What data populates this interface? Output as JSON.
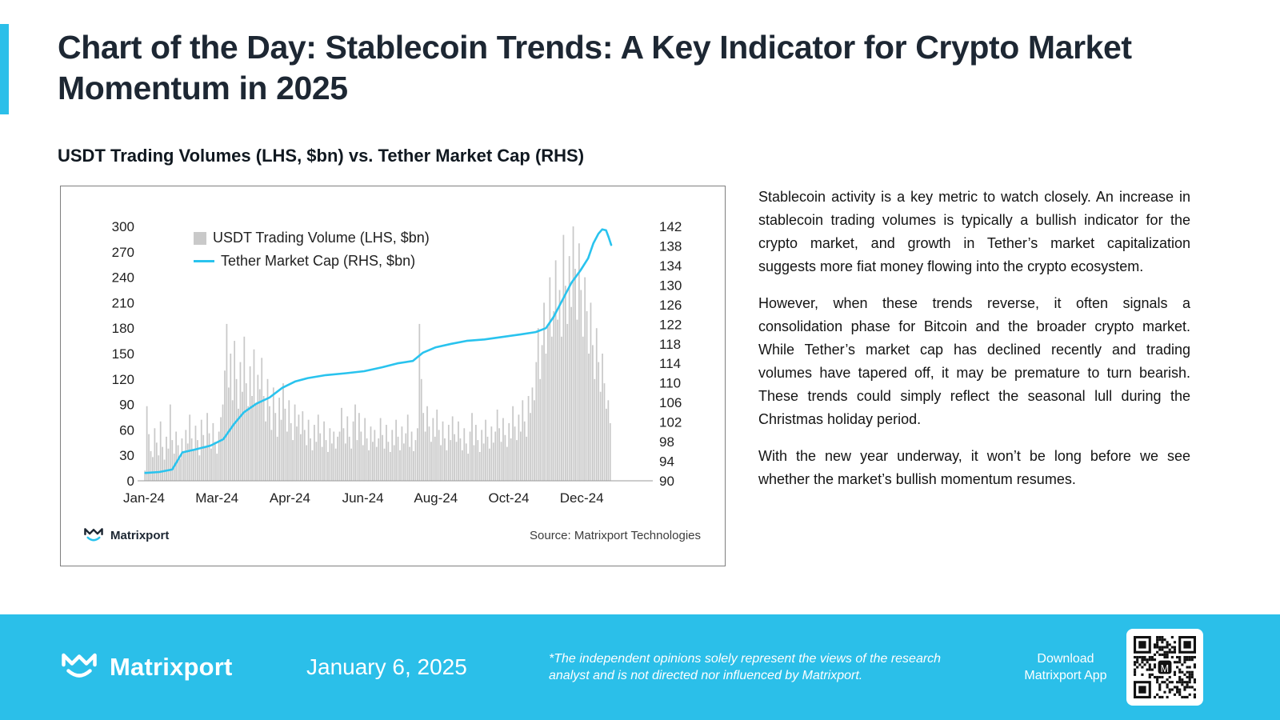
{
  "page": {
    "accent": "#2bbfe9",
    "background": "#ffffff"
  },
  "header": {
    "title": "Chart of the Day: Stablecoin Trends: A Key Indicator for Crypto Market Momentum in 2025"
  },
  "chart_section": {
    "heading": "USDT Trading Volumes (LHS, $bn) vs. Tether Market Cap (RHS)",
    "logo_text": "Matrixport",
    "source": "Source: Matrixport Technologies"
  },
  "chart_data": {
    "type": "bar+line combo",
    "legend_position": "top-left-inside",
    "grid": false,
    "x_axis": {
      "labels": [
        "Jan-24",
        "Mar-24",
        "Apr-24",
        "Jun-24",
        "Aug-24",
        "Oct-24",
        "Dec-24"
      ],
      "tick_days": [
        0,
        57,
        114,
        171,
        228,
        285,
        342
      ],
      "span_days": 365
    },
    "left_axis": {
      "min": 0,
      "max": 300,
      "step": 30
    },
    "right_axis": {
      "min": 90,
      "max": 142,
      "step": 4
    },
    "series": [
      {
        "name": "USDT Trading Volume (LHS, $bn)",
        "type": "bar",
        "axis": "left",
        "color": "#c9c9c9",
        "x_spacing": "uniform over span_days",
        "values": [
          12,
          88,
          55,
          35,
          28,
          62,
          45,
          30,
          70,
          40,
          25,
          52,
          38,
          90,
          48,
          32,
          58,
          42,
          26,
          50,
          34,
          60,
          44,
          78,
          50,
          36,
          65,
          48,
          30,
          72,
          54,
          40,
          80,
          56,
          38,
          68,
          46,
          32,
          58,
          75,
          90,
          130,
          185,
          110,
          150,
          95,
          165,
          120,
          85,
          140,
          105,
          170,
          115,
          88,
          135,
          100,
          155,
          92,
          125,
          108,
          145,
          100,
          70,
          120,
          88,
          60,
          110,
          80,
          52,
          98,
          72,
          115,
          85,
          58,
          95,
          68,
          48,
          90,
          64,
          78,
          55,
          82,
          60,
          42,
          72,
          50,
          36,
          66,
          46,
          78,
          56,
          40,
          70,
          48,
          34,
          62,
          44,
          58,
          38,
          52,
          58,
          86,
          62,
          44,
          76,
          52,
          38,
          70,
          90,
          48,
          80,
          58,
          42,
          74,
          50,
          36,
          64,
          46,
          60,
          40,
          50,
          74,
          54,
          38,
          66,
          46,
          34,
          60,
          42,
          72,
          52,
          36,
          64,
          44,
          56,
          78,
          40,
          58,
          35,
          48,
          62,
          185,
          120,
          80,
          58,
          88,
          64,
          46,
          74,
          52,
          84,
          60,
          42,
          70,
          50,
          36,
          66,
          48,
          76,
          55,
          46,
          70,
          50,
          36,
          62,
          44,
          32,
          58,
          80,
          42,
          66,
          48,
          34,
          60,
          44,
          72,
          52,
          38,
          64,
          45,
          58,
          84,
          62,
          46,
          74,
          54,
          40,
          68,
          50,
          88,
          64,
          48,
          78,
          58,
          95,
          70,
          52,
          100,
          80,
          110,
          95,
          140,
          180,
          120,
          160,
          210,
          150,
          185,
          240,
          170,
          200,
          260,
          190,
          225,
          170,
          290,
          230,
          185,
          265,
          205,
          300,
          250,
          190,
          280,
          225,
          170,
          240,
          200,
          150,
          210,
          160,
          120,
          180,
          140,
          105,
          150,
          115,
          85,
          95,
          68
        ]
      },
      {
        "name": "Tether Market Cap (RHS, $bn)",
        "type": "line",
        "axis": "right",
        "color": "#29c3ee",
        "points": [
          [
            1,
            91.6
          ],
          [
            12,
            91.8
          ],
          [
            22,
            92.3
          ],
          [
            30,
            95.8
          ],
          [
            40,
            96.4
          ],
          [
            52,
            97.2
          ],
          [
            62,
            98.5
          ],
          [
            70,
            101.5
          ],
          [
            78,
            104
          ],
          [
            88,
            105.8
          ],
          [
            98,
            107
          ],
          [
            108,
            109
          ],
          [
            118,
            110.3
          ],
          [
            128,
            111
          ],
          [
            142,
            111.6
          ],
          [
            158,
            112
          ],
          [
            172,
            112.4
          ],
          [
            186,
            113.2
          ],
          [
            198,
            114
          ],
          [
            210,
            114.5
          ],
          [
            218,
            116.2
          ],
          [
            228,
            117.3
          ],
          [
            240,
            118
          ],
          [
            252,
            118.6
          ],
          [
            266,
            118.9
          ],
          [
            280,
            119.4
          ],
          [
            294,
            119.9
          ],
          [
            306,
            120.4
          ],
          [
            314,
            121.2
          ],
          [
            320,
            123.5
          ],
          [
            327,
            127
          ],
          [
            334,
            130.5
          ],
          [
            341,
            133
          ],
          [
            347,
            135.5
          ],
          [
            351,
            138.5
          ],
          [
            355,
            140.5
          ],
          [
            358,
            141.4
          ],
          [
            361,
            141.2
          ],
          [
            363,
            139.8
          ],
          [
            365,
            138.2
          ]
        ]
      }
    ]
  },
  "article": {
    "paragraphs": [
      "Stablecoin activity is a key metric to watch closely. An increase in stablecoin trading volumes is typically a bullish indicator for the crypto market, and growth in Tether’s market capitalization suggests more fiat money flowing into the crypto ecosystem.",
      "However, when these trends reverse, it often signals a consolidation phase for Bitcoin and the broader crypto market. While Tether’s market cap has declined recently and trading volumes have tapered off, it may be premature to turn bearish. These trends could simply reflect the seasonal lull during the Christmas holiday period.",
      "With the new year underway, it won’t be long before we see whether the market’s bullish momentum resumes."
    ]
  },
  "footer": {
    "brand": "Matrixport",
    "date": "January 6, 2025",
    "disclaimer": "*The independent opinions solely represent the views of the research analyst and is not directed nor influenced by Matrixport.",
    "download": "Download\nMatrixport App"
  }
}
